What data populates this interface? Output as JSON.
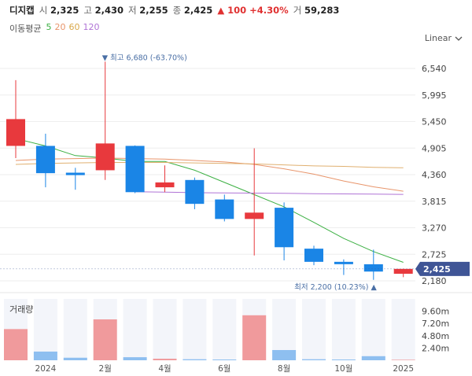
{
  "header": {
    "name": "디지캡",
    "open_label": "시",
    "open": "2,325",
    "high_label": "고",
    "high": "2,430",
    "low_label": "저",
    "low": "2,255",
    "close_label": "종",
    "close": "2,425",
    "change": "▲ 100 +4.30%",
    "volume_label": "거",
    "volume": "59,283"
  },
  "ma": {
    "title": "이동평균",
    "p5": "5",
    "p20": "20",
    "p60": "60",
    "p120": "120"
  },
  "scale_toggle": {
    "label": "Linear"
  },
  "colors": {
    "up": "#e8393d",
    "down": "#1a85e6",
    "ma5": "#3cb043",
    "ma20": "#e8956b",
    "ma60": "#e0b070",
    "ma120": "#b074d6",
    "current_tag": "#3f5596"
  },
  "chart_data": {
    "type": "candlestick",
    "y_ticks": [
      "6,540",
      "5,995",
      "5,450",
      "4,905",
      "4,360",
      "3,815",
      "3,270",
      "2,725",
      "2,180"
    ],
    "ylim": [
      2180,
      6540
    ],
    "candles": [
      {
        "open": 4950,
        "high": 6300,
        "low": 4700,
        "close": 5500
      },
      {
        "open": 4950,
        "high": 5200,
        "low": 4100,
        "close": 4390
      },
      {
        "open": 4400,
        "high": 4500,
        "low": 4050,
        "close": 4350
      },
      {
        "open": 4450,
        "high": 6680,
        "low": 4250,
        "close": 5000
      },
      {
        "open": 4950,
        "high": 4960,
        "low": 3980,
        "close": 4000
      },
      {
        "open": 4100,
        "high": 4550,
        "low": 4000,
        "close": 4200
      },
      {
        "open": 4250,
        "high": 4300,
        "low": 3650,
        "close": 3760
      },
      {
        "open": 3850,
        "high": 3950,
        "low": 3400,
        "close": 3450
      },
      {
        "open": 3450,
        "high": 4900,
        "low": 2700,
        "close": 3580
      },
      {
        "open": 3680,
        "high": 3790,
        "low": 2600,
        "close": 2870
      },
      {
        "open": 2840,
        "high": 2900,
        "low": 2500,
        "close": 2570
      },
      {
        "open": 2570,
        "high": 2620,
        "low": 2300,
        "close": 2540
      },
      {
        "open": 2520,
        "high": 2820,
        "low": 2200,
        "close": 2370
      },
      {
        "open": 2325,
        "high": 2430,
        "low": 2255,
        "close": 2425
      }
    ],
    "ma_series": [
      {
        "period": "5",
        "values": [
          5100,
          4950,
          4750,
          4700,
          4630,
          4630,
          4450,
          4200,
          3950,
          3700,
          3380,
          3050,
          2780,
          2560
        ]
      },
      {
        "period": "20",
        "values": [
          4650,
          4680,
          4690,
          4700,
          4690,
          4680,
          4650,
          4620,
          4570,
          4480,
          4370,
          4230,
          4110,
          4020
        ]
      },
      {
        "period": "60",
        "values": [
          4570,
          4590,
          4600,
          4610,
          4610,
          4610,
          4600,
          4590,
          4580,
          4560,
          4540,
          4530,
          4510,
          4500
        ]
      },
      {
        "period": "120",
        "values": [
          null,
          null,
          null,
          null,
          4010,
          4000,
          3990,
          3985,
          3980,
          3975,
          3970,
          3965,
          3960,
          3955
        ]
      }
    ],
    "high_annotation": "▼ 최고 6,680 (-63.70%)",
    "low_annotation": "최저 2,200 (10.23%) ▲",
    "current_price": "2,425",
    "volume": {
      "title": "거래량",
      "y_ticks": [
        "9.60m",
        "7.20m",
        "4.80m",
        "2.40m"
      ],
      "ylim": [
        0,
        12000000
      ],
      "values": [
        6100000,
        1700000,
        500000,
        8000000,
        600000,
        300000,
        200000,
        150000,
        8800000,
        2000000,
        200000,
        150000,
        800000,
        100000
      ]
    },
    "x_labels": [
      "2024",
      "2월",
      "4월",
      "6월",
      "8월",
      "10월",
      "2025"
    ]
  }
}
